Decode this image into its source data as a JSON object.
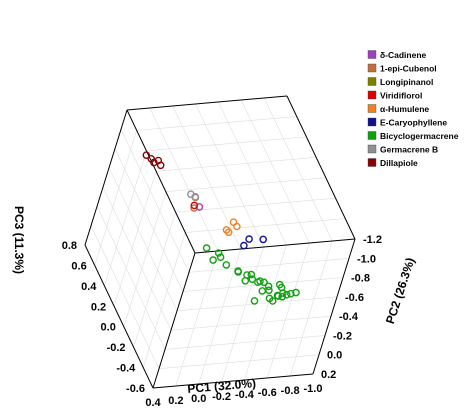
{
  "chart_data": {
    "type": "scatter",
    "title": "",
    "x_axis": {
      "label": "PC1 (32.0%)",
      "ticks": [
        "0.4",
        "0.2",
        "0.0",
        "-0.2",
        "-0.4",
        "-0.6",
        "-0.8",
        "-1.0"
      ],
      "range": [
        0.4,
        -1.0
      ]
    },
    "y_axis": {
      "label": "PC2 (26.3%)",
      "ticks": [
        "-1.2",
        "-1.0",
        "-0.8",
        "-0.6",
        "-0.4",
        "-0.2",
        "0.0",
        "0.2"
      ],
      "range": [
        -1.2,
        0.2
      ]
    },
    "z_axis": {
      "label": "PC3 (11.3%)",
      "ticks": [
        "0.8",
        "0.6",
        "0.4",
        "0.2",
        "0.0",
        "-0.2",
        "-0.4",
        "-0.6"
      ],
      "range": [
        -0.6,
        0.8
      ]
    },
    "grid": true,
    "legend_position": "top-right",
    "marker": "open-circle",
    "series": [
      {
        "name": "δ-Cadinene",
        "color": "#a040c0",
        "points": [
          [
            0.02,
            -0.05,
            0.05
          ]
        ]
      },
      {
        "name": "1-epi-Cubenol",
        "color": "#c07040",
        "points": [
          [
            0.1,
            0.0,
            0.0
          ],
          [
            0.06,
            0.02,
            0.08
          ]
        ]
      },
      {
        "name": "Longipinanol",
        "color": "#808000",
        "points": []
      },
      {
        "name": "Viridiflorol",
        "color": "#e00000",
        "points": [
          [
            0.12,
            0.05,
            -0.02
          ]
        ]
      },
      {
        "name": "α-Humulene",
        "color": "#f08020",
        "points": [
          [
            -0.18,
            -0.15,
            -0.1
          ],
          [
            -0.25,
            -0.12,
            -0.06
          ],
          [
            -0.22,
            -0.2,
            -0.08
          ],
          [
            -0.3,
            -0.18,
            -0.05
          ]
        ]
      },
      {
        "name": "E-Caryophyllene",
        "color": "#101090",
        "points": [
          [
            -0.2,
            -0.05,
            -0.35
          ],
          [
            -0.25,
            -0.02,
            -0.32
          ],
          [
            -0.45,
            -0.15,
            -0.22
          ]
        ]
      },
      {
        "name": "Bicyclogermacrene",
        "color": "#10a010",
        "points": [
          [
            -0.45,
            -0.95,
            0.45
          ],
          [
            -0.52,
            -1.05,
            0.42
          ],
          [
            -0.55,
            -0.98,
            0.38
          ],
          [
            -0.5,
            -0.9,
            0.35
          ],
          [
            -0.58,
            -1.0,
            0.32
          ],
          [
            -0.62,
            -0.95,
            0.2
          ],
          [
            -0.65,
            -0.9,
            0.12
          ],
          [
            -0.6,
            -0.88,
            0.05
          ],
          [
            -0.68,
            -0.85,
            0.0
          ],
          [
            -0.7,
            -0.8,
            -0.05
          ],
          [
            -0.55,
            -0.7,
            -0.1
          ],
          [
            -0.6,
            -0.72,
            -0.2
          ],
          [
            -0.65,
            -0.75,
            -0.25
          ],
          [
            -0.7,
            -0.7,
            -0.28
          ],
          [
            -0.75,
            -0.68,
            -0.22
          ],
          [
            -0.72,
            -0.65,
            -0.3
          ],
          [
            -0.68,
            -0.62,
            -0.36
          ],
          [
            -0.62,
            -0.58,
            -0.38
          ],
          [
            -0.55,
            -0.55,
            -0.35
          ],
          [
            -0.48,
            -0.5,
            -0.3
          ],
          [
            -0.42,
            -0.48,
            -0.25
          ],
          [
            -0.5,
            -0.45,
            -0.4
          ],
          [
            -0.58,
            -0.42,
            -0.42
          ],
          [
            -0.65,
            -0.5,
            -0.45
          ],
          [
            -0.72,
            -0.55,
            -0.4
          ],
          [
            -0.4,
            -0.6,
            -0.1
          ],
          [
            -0.45,
            -0.65,
            -0.35
          ],
          [
            -0.52,
            -0.52,
            -0.48
          ],
          [
            -0.8,
            -0.6,
            -0.35
          ]
        ]
      },
      {
        "name": "Germacrene B",
        "color": "#909090",
        "points": [
          [
            0.06,
            -0.02,
            0.15
          ],
          [
            0.02,
            -0.04,
            0.14
          ]
        ]
      },
      {
        "name": "Dillapiole",
        "color": "#8b0000",
        "points": [
          [
            0.1,
            -0.3,
            0.8
          ],
          [
            0.06,
            -0.32,
            0.78
          ],
          [
            0.04,
            -0.34,
            0.76
          ],
          [
            0.02,
            -0.3,
            0.74
          ],
          [
            0.0,
            -0.33,
            0.72
          ]
        ]
      }
    ]
  }
}
